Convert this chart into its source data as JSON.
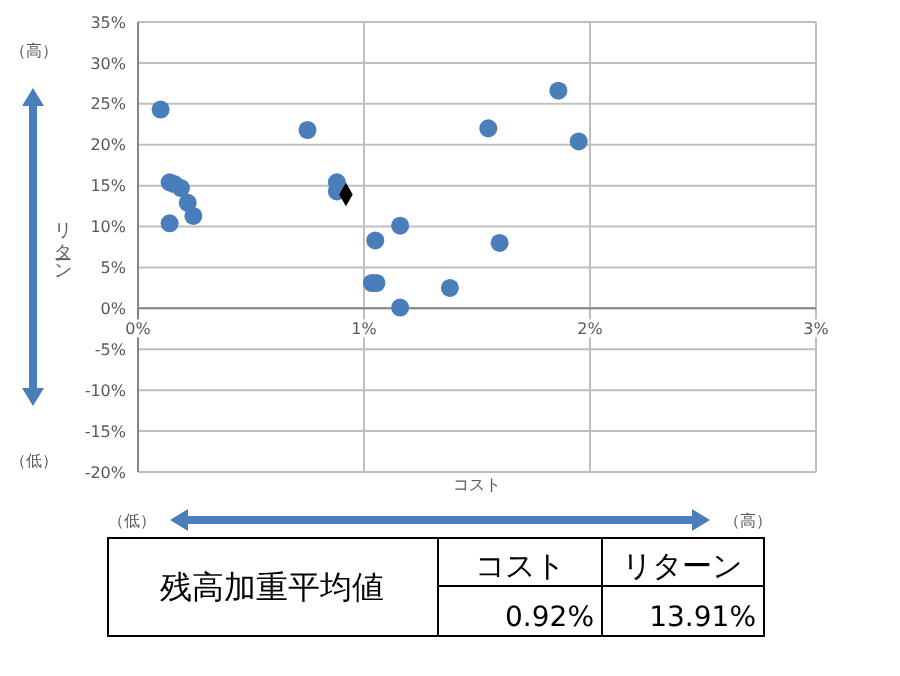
{
  "chart_data": {
    "type": "scatter",
    "xlabel": "コスト",
    "ylabel": "リターン",
    "xlim": [
      0,
      3
    ],
    "ylim": [
      -20,
      35
    ],
    "xticks": [
      {
        "value": 0,
        "label": "0%"
      },
      {
        "value": 1,
        "label": "1%"
      },
      {
        "value": 2,
        "label": "2%"
      },
      {
        "value": 3,
        "label": "3%"
      }
    ],
    "yticks": [
      {
        "value": -20,
        "label": "-20%"
      },
      {
        "value": -15,
        "label": "-15%"
      },
      {
        "value": -10,
        "label": "-10%"
      },
      {
        "value": -5,
        "label": "-5%"
      },
      {
        "value": 0,
        "label": "0%"
      },
      {
        "value": 5,
        "label": "5%"
      },
      {
        "value": 10,
        "label": "10%"
      },
      {
        "value": 15,
        "label": "15%"
      },
      {
        "value": 20,
        "label": "20%"
      },
      {
        "value": 25,
        "label": "25%"
      },
      {
        "value": 30,
        "label": "30%"
      },
      {
        "value": 35,
        "label": "35%"
      }
    ],
    "grid": true,
    "series": [
      {
        "color": "#4a7ebb",
        "marker": "circle",
        "x": [
          0.1,
          0.75,
          0.14,
          0.16,
          0.19,
          0.22,
          0.245,
          0.14,
          0.88,
          0.88,
          1.05,
          1.16,
          1.035,
          1.055,
          1.16,
          1.38,
          1.55,
          1.6,
          1.86,
          1.95
        ],
        "values": [
          24.3,
          21.8,
          15.4,
          15.2,
          14.7,
          12.9,
          11.3,
          10.4,
          15.4,
          14.3,
          8.3,
          10.1,
          3.1,
          3.1,
          0.1,
          2.5,
          22.0,
          8.0,
          26.6,
          20.4
        ]
      },
      {
        "color": "#000000",
        "marker": "diamond",
        "x": [
          0.92
        ],
        "values": [
          13.91
        ]
      }
    ],
    "annotations": [
      "（高）",
      "（低）",
      "（低）",
      "（高）",
      "残高加重平均値",
      "コスト",
      "リターン",
      "0.92%",
      "13.91%"
    ]
  }
}
